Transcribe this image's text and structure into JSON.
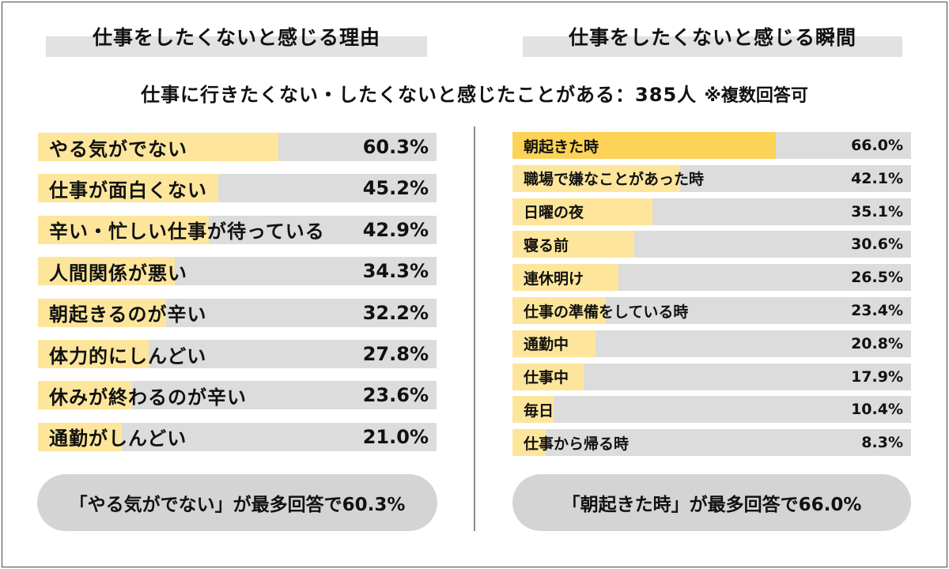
{
  "header": {
    "left_title": "仕事をしたくないと感じる理由",
    "right_title": "仕事をしたくないと感じる瞬間",
    "subtitle": "仕事に行きたくない・したくないと感じたことがある：385人",
    "subtitle_note": "※複数回答可"
  },
  "chart_data": [
    {
      "type": "bar",
      "orientation": "horizontal",
      "title": "仕事をしたくないと感じる理由",
      "unit": "%",
      "xlim": [
        0,
        100
      ],
      "categories": [
        "やる気がでない",
        "仕事が面白くない",
        "辛い・忙しい仕事が待っている",
        "人間関係が悪い",
        "朝起きるのが辛い",
        "体力的にしんどい",
        "休みが終わるのが辛い",
        "通勤がしんどい"
      ],
      "values": [
        60.3,
        45.2,
        42.9,
        34.3,
        32.2,
        27.8,
        23.6,
        21.0
      ],
      "value_labels": [
        "60.3%",
        "45.2%",
        "42.9%",
        "34.3%",
        "32.2%",
        "27.8%",
        "23.6%",
        "21.0%"
      ],
      "colors": {
        "fill": "#fde69c",
        "track": "#dcdcdc"
      }
    },
    {
      "type": "bar",
      "orientation": "horizontal",
      "title": "仕事をしたくないと感じる瞬間",
      "unit": "%",
      "xlim": [
        0,
        100
      ],
      "categories": [
        "朝起きた時",
        "職場で嫌なことがあった時",
        "日曜の夜",
        "寝る前",
        "連休明け",
        "仕事の準備をしている時",
        "通勤中",
        "仕事中",
        "毎日",
        "仕事から帰る時"
      ],
      "values": [
        66.0,
        42.1,
        35.1,
        30.6,
        26.5,
        23.4,
        20.8,
        17.9,
        10.4,
        8.3
      ],
      "value_labels": [
        "66.0%",
        "42.1%",
        "35.1%",
        "30.6%",
        "26.5%",
        "23.4%",
        "20.8%",
        "17.9%",
        "10.4%",
        "8.3%"
      ],
      "colors": {
        "fill": "#fde69c",
        "top_fill": "#fcd357",
        "track": "#dcdcdc"
      }
    }
  ],
  "summary": {
    "left": "「やる気がでない」が最多回答で60.3%",
    "right": "「朝起きた時」が最多回答で66.0%"
  }
}
